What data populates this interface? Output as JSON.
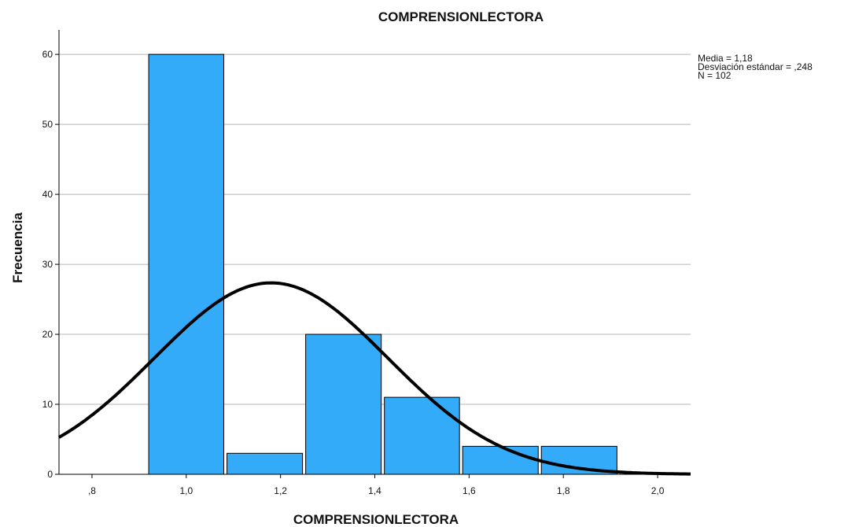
{
  "chart_data": {
    "type": "bar",
    "subtype": "histogram",
    "title": "COMPRENSIONLECTORA",
    "xlabel": "COMPRENSIONLECTORA",
    "ylabel": "Frecuencia",
    "xlim": [
      0.73,
      2.07
    ],
    "ylim": [
      0,
      63.5
    ],
    "x_ticks": [
      0.8,
      1.0,
      1.2,
      1.4,
      1.6,
      1.8,
      2.0
    ],
    "x_tick_labels": [
      ",8",
      "1,0",
      "1,2",
      "1,4",
      "1,6",
      "1,8",
      "2,0"
    ],
    "y_ticks": [
      0,
      10,
      20,
      30,
      40,
      50,
      60
    ],
    "y_tick_labels": [
      "0",
      "10",
      "20",
      "30",
      "40",
      "50",
      "60"
    ],
    "bins": [
      {
        "x0": 0.917,
        "x1": 1.083,
        "value": 60
      },
      {
        "x0": 1.083,
        "x1": 1.25,
        "value": 3
      },
      {
        "x0": 1.25,
        "x1": 1.417,
        "value": 20
      },
      {
        "x0": 1.417,
        "x1": 1.583,
        "value": 11
      },
      {
        "x0": 1.583,
        "x1": 1.75,
        "value": 4
      },
      {
        "x0": 1.75,
        "x1": 1.917,
        "value": 4
      }
    ],
    "normal_curve": {
      "mean": 1.18,
      "sd": 0.248,
      "n": 102,
      "bin_width": 0.1667
    },
    "grid": true,
    "bar_color": "#33abf9",
    "stats": [
      "Media = 1,18",
      "Desviación estándar = ,248",
      "N = 102"
    ]
  }
}
